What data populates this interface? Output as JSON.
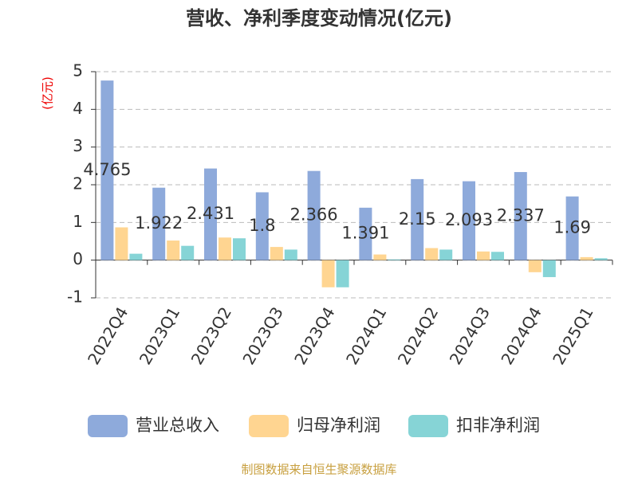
{
  "chart_data": {
    "type": "bar",
    "title": "营收、净利季度变动情况(亿元)",
    "y_label": "(亿元)",
    "categories": [
      "2022Q4",
      "2023Q1",
      "2023Q2",
      "2023Q3",
      "2023Q4",
      "2024Q1",
      "2024Q2",
      "2024Q3",
      "2024Q4",
      "2025Q1"
    ],
    "series": [
      {
        "name": "营业总收入",
        "color": "#8eaadb",
        "values": [
          4.765,
          1.922,
          2.431,
          1.8,
          2.366,
          1.391,
          2.15,
          2.093,
          2.337,
          1.69
        ]
      },
      {
        "name": "归母净利润",
        "color": "#ffd591",
        "values": [
          0.87,
          0.52,
          0.6,
          0.35,
          -0.72,
          0.15,
          0.32,
          0.23,
          -0.32,
          0.08
        ]
      },
      {
        "name": "扣非净利润",
        "color": "#86d4d6",
        "values": [
          0.17,
          0.38,
          0.58,
          0.28,
          -0.72,
          0.02,
          0.28,
          0.22,
          -0.45,
          0.05
        ]
      }
    ],
    "ylim": [
      -1,
      5
    ],
    "yticks": [
      -1,
      0,
      1,
      2,
      3,
      4,
      5
    ],
    "grid": true,
    "source": "制图数据来自恒生聚源数据库"
  }
}
